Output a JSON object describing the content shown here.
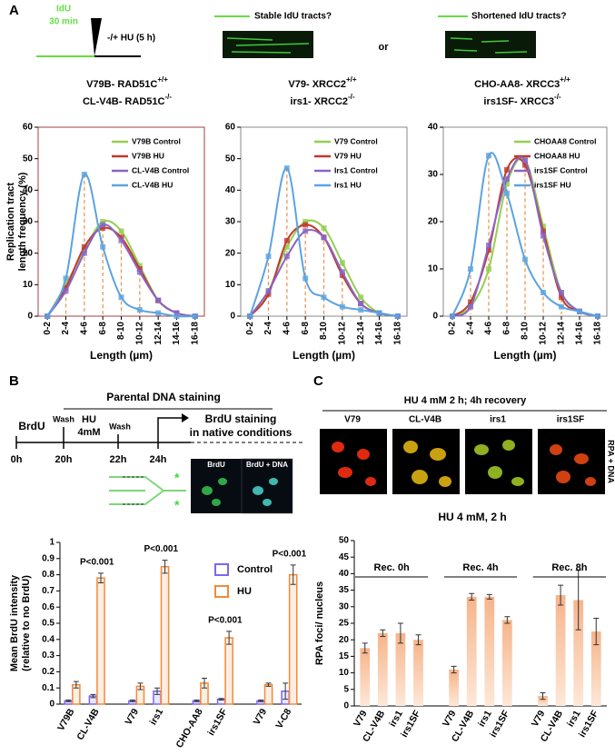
{
  "panels": {
    "a": {
      "letter": "A",
      "idu": "IdU",
      "idu_time": "30 min",
      "hu": "-/+ HU (5 h)",
      "stable": "Stable IdU tracts?",
      "or": "or",
      "shortened": "Shortened IdU tracts?"
    },
    "b": {
      "letter": "B",
      "heading": "Parental DNA staining",
      "brdu": "BrdU",
      "wash1": "Wash",
      "hu": "HU",
      "hu_conc": "4mM",
      "wash2": "Wash",
      "staining1": "BrdU staining",
      "staining2": "in native conditions",
      "times": [
        "0h",
        "20h",
        "22h",
        "24h"
      ],
      "image_labels": [
        "BrdU",
        "BrdU + DNA"
      ]
    },
    "c": {
      "letter": "C",
      "heading": "HU 4 mM 2 h; 4h recovery",
      "cells": [
        "V79",
        "CL-V4B",
        "irs1",
        "irs1SF"
      ],
      "side_label": "RPA + DNA"
    }
  },
  "chart_data": [
    {
      "type": "line",
      "title_lines": [
        {
          "text": "V79B- RAD51C",
          "sup": "+/+"
        },
        {
          "text": "CL-V4B- RAD51C",
          "sup": "-/-"
        }
      ],
      "y_label_lines": [
        "Replication tract",
        "length frequency (%)"
      ],
      "x_label": "Length (µm)",
      "categories": [
        "0-2",
        "2-4",
        "4-6",
        "6-8",
        "8-10",
        "10-12",
        "12-14",
        "14-16",
        "16-18"
      ],
      "ylim": [
        0,
        60
      ],
      "yticks": [
        0,
        10,
        20,
        30,
        40,
        50,
        60
      ],
      "legend": "upper right",
      "series": [
        {
          "name": "V79B Control",
          "color": "#92d050",
          "values": [
            0,
            10,
            21,
            30,
            27,
            16,
            5,
            1,
            0
          ]
        },
        {
          "name": "V79B HU",
          "color": "#c0392b",
          "values": [
            0,
            9,
            22,
            28,
            25,
            15,
            5,
            1,
            0
          ]
        },
        {
          "name": "CL-V4B Control",
          "color": "#8a64c8",
          "values": [
            0,
            8,
            20,
            29,
            24,
            14,
            5,
            1,
            0
          ]
        },
        {
          "name": "CL-V4B HU",
          "color": "#5ba3e0",
          "values": [
            0,
            12,
            45,
            22,
            6,
            2,
            1,
            0,
            0
          ]
        }
      ]
    },
    {
      "type": "line",
      "title_lines": [
        {
          "text": "V79- XRCC2",
          "sup": "+/+"
        },
        {
          "text": "irs1- XRCC2",
          "sup": "-/-"
        }
      ],
      "x_label": "Length (µm)",
      "categories": [
        "0-2",
        "2-4",
        "4-6",
        "6-8",
        "8-10",
        "10-12",
        "12-14",
        "14-16",
        "16-18"
      ],
      "ylim": [
        0,
        60
      ],
      "yticks": [
        0,
        10,
        20,
        30,
        40,
        50,
        60
      ],
      "legend": "upper right",
      "series": [
        {
          "name": "V79 Control",
          "color": "#92d050",
          "values": [
            0,
            8,
            22,
            30,
            28,
            17,
            6,
            1,
            0
          ]
        },
        {
          "name": "V79 HU",
          "color": "#c0392b",
          "values": [
            0,
            7,
            24,
            29,
            25,
            13,
            4,
            1,
            0
          ]
        },
        {
          "name": "Irs1 Control",
          "color": "#8a64c8",
          "values": [
            0,
            8,
            19,
            27,
            25,
            14,
            4,
            1,
            0
          ]
        },
        {
          "name": "Irs1 HU",
          "color": "#5ba3e0",
          "values": [
            0,
            19,
            47,
            12,
            6,
            3,
            2,
            1,
            0
          ]
        }
      ]
    },
    {
      "type": "line",
      "title_lines": [
        {
          "text": "CHO-AA8- XRCC3",
          "sup": "+/+"
        },
        {
          "text": "irs1SF- XRCC3",
          "sup": "-/-"
        }
      ],
      "x_label": "Length (µm)",
      "categories": [
        "0-2",
        "2-4",
        "4-6",
        "6-8",
        "8-10",
        "10-12",
        "12-14",
        "14-16",
        "16-18"
      ],
      "ylim": [
        0,
        40
      ],
      "yticks": [
        0,
        10,
        20,
        30,
        40
      ],
      "legend": "upper right",
      "series": [
        {
          "name": "CHOAA8 Control",
          "color": "#92d050",
          "values": [
            0,
            2,
            10,
            28,
            33,
            19,
            5,
            1,
            0
          ]
        },
        {
          "name": "CHOAA8 HU",
          "color": "#c0392b",
          "values": [
            0,
            3,
            14,
            31,
            32,
            18,
            4,
            1,
            0
          ]
        },
        {
          "name": "irs1SF Control",
          "color": "#8a64c8",
          "values": [
            0,
            2,
            15,
            29,
            33,
            17,
            5,
            1,
            0
          ]
        },
        {
          "name": "irs1SF HU",
          "color": "#5ba3e0",
          "values": [
            0,
            10,
            34,
            26,
            12,
            5,
            2,
            1,
            0
          ]
        }
      ]
    },
    {
      "type": "bar",
      "y_label_lines": [
        "Mean BrdU intensity",
        "(relative to no BrdU)"
      ],
      "categories": [
        "V79B",
        "CL-V4B",
        "V79",
        "irs1",
        "CHO-AA8",
        "irs1SF",
        "V79",
        "V-C8"
      ],
      "ylim": [
        0,
        1
      ],
      "yticks": [
        0,
        0.1,
        0.2,
        0.3,
        0.4,
        0.5,
        0.6,
        0.7,
        0.8,
        0.9,
        1
      ],
      "legend": "upper right",
      "annotations": [
        null,
        "P<0.001",
        null,
        "P<0.001",
        null,
        "P<0.001",
        null,
        "P<0.001"
      ],
      "series": [
        {
          "name": "Control",
          "color": "#7b68ee",
          "values": [
            0.02,
            0.05,
            0.02,
            0.08,
            0.02,
            0.03,
            0.02,
            0.08
          ],
          "errors": [
            0.005,
            0.01,
            0.005,
            0.02,
            0.005,
            0.005,
            0.005,
            0.05
          ]
        },
        {
          "name": "HU",
          "color": "#f08a3c",
          "values": [
            0.12,
            0.78,
            0.11,
            0.85,
            0.13,
            0.41,
            0.12,
            0.8
          ],
          "errors": [
            0.02,
            0.03,
            0.02,
            0.04,
            0.03,
            0.04,
            0.01,
            0.06
          ]
        }
      ]
    },
    {
      "type": "bar",
      "title": "HU 4 mM, 2 h",
      "y_label": "RPA foci/ nucleus",
      "groups": [
        "Rec. 0h",
        "Rec. 4h",
        "Rec. 8h"
      ],
      "categories": [
        "V79",
        "CL-V4B",
        "irs1",
        "irs1SF",
        "V79",
        "CL-V4B",
        "irs1",
        "irs1SF",
        "V79",
        "CL-V4B",
        "irs1",
        "irs1SF"
      ],
      "ylim": [
        0,
        50
      ],
      "yticks": [
        0,
        5,
        10,
        15,
        20,
        25,
        30,
        35,
        40,
        45,
        50
      ],
      "color": "#f6b48a",
      "values": [
        17.5,
        22,
        22,
        20,
        11,
        33,
        33,
        26,
        3,
        33.5,
        32,
        22.5
      ],
      "errors": [
        1.5,
        1,
        3,
        1.5,
        1,
        1,
        0.7,
        1,
        1,
        3,
        9,
        4
      ]
    }
  ]
}
